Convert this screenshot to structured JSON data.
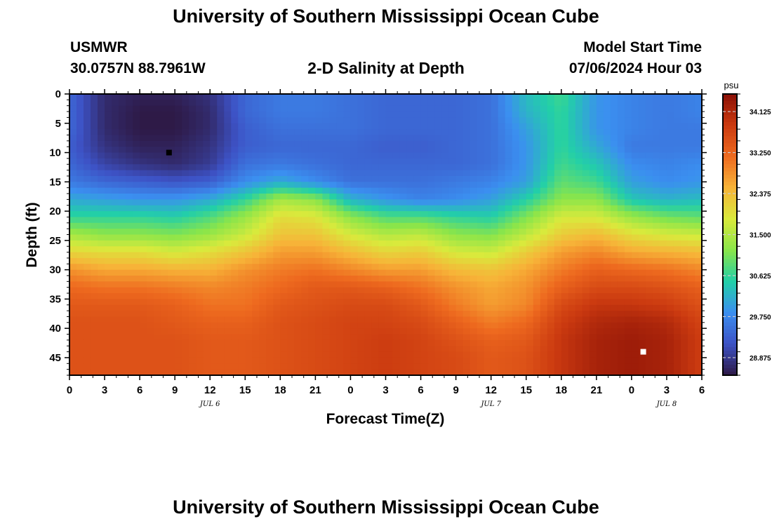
{
  "header": {
    "title": "University of Southern Mississippi Ocean Cube",
    "station": "USMWR",
    "coords": "30.0757N  88.7961W",
    "center_title": "2-D Salinity at Depth",
    "model_label": "Model Start Time",
    "model_value": "07/06/2024 Hour 03"
  },
  "footer": {
    "title": "University of Southern Mississippi Ocean Cube"
  },
  "chart_data": {
    "type": "heatmap",
    "title": "2-D Salinity at Depth",
    "xlabel": "Forecast Time(Z)",
    "ylabel": "Depth (ft)",
    "x_tick_labels": [
      "0",
      "3",
      "6",
      "9",
      "12",
      "15",
      "18",
      "21",
      "0",
      "3",
      "6",
      "9",
      "12",
      "15",
      "18",
      "21",
      "0",
      "3",
      "6"
    ],
    "x_date_labels": [
      {
        "label": "JUL 6",
        "hour": 12
      },
      {
        "label": "JUL 7",
        "hour": 36
      },
      {
        "label": "JUL 8",
        "hour": 51
      }
    ],
    "xlim_hours": [
      0,
      54
    ],
    "y_tick_labels": [
      "0",
      "5",
      "10",
      "15",
      "20",
      "25",
      "30",
      "35",
      "40",
      "45"
    ],
    "ylim": [
      0,
      48
    ],
    "y_inverted": true,
    "colorbar": {
      "unit": "psu",
      "min": 28.5,
      "max": 34.5,
      "ticks": [
        "34.125",
        "33.250",
        "32.375",
        "31.500",
        "30.625",
        "29.750",
        "28.875"
      ],
      "colors": [
        "#2e1a47",
        "#3d52c5",
        "#3b8ff0",
        "#22cfa8",
        "#8ae54a",
        "#d9ea3c",
        "#f7b338",
        "#ee6a1f",
        "#cb3a10",
        "#8a1006"
      ]
    },
    "columns_hours": [
      0,
      3,
      6,
      9,
      12,
      15,
      18,
      21,
      24,
      27,
      30,
      33,
      36,
      39,
      42,
      45,
      48,
      51,
      54
    ],
    "rows_depth_ft": [
      0,
      3,
      6,
      9,
      12,
      15,
      18,
      21,
      24,
      27,
      30,
      33,
      36,
      39,
      42,
      45,
      48
    ],
    "salinity_grid": [
      [
        29.4,
        28.7,
        28.6,
        28.6,
        28.8,
        29.4,
        29.6,
        29.6,
        29.5,
        29.4,
        29.4,
        29.4,
        29.5,
        30.3,
        30.7,
        29.9,
        29.7,
        29.6,
        29.7
      ],
      [
        29.4,
        28.7,
        28.5,
        28.5,
        28.7,
        29.4,
        29.6,
        29.6,
        29.5,
        29.4,
        29.4,
        29.4,
        29.5,
        30.2,
        30.6,
        29.9,
        29.7,
        29.6,
        29.7
      ],
      [
        29.4,
        28.7,
        28.5,
        28.5,
        28.7,
        29.3,
        29.5,
        29.5,
        29.5,
        29.4,
        29.4,
        29.4,
        29.5,
        30.0,
        30.6,
        29.9,
        29.7,
        29.6,
        29.6
      ],
      [
        29.3,
        28.8,
        28.6,
        28.6,
        28.8,
        29.3,
        29.4,
        29.4,
        29.4,
        29.3,
        29.3,
        29.4,
        29.5,
        29.9,
        30.6,
        30.1,
        29.6,
        29.6,
        29.6
      ],
      [
        29.4,
        29.0,
        28.8,
        28.7,
        28.9,
        29.5,
        29.6,
        29.5,
        29.4,
        29.4,
        29.4,
        29.4,
        29.5,
        29.9,
        30.7,
        30.4,
        29.8,
        29.7,
        29.8
      ],
      [
        29.6,
        29.4,
        29.3,
        29.2,
        29.3,
        29.8,
        30.1,
        29.8,
        29.5,
        29.5,
        29.5,
        29.6,
        29.7,
        30.0,
        30.9,
        30.7,
        30.0,
        29.8,
        29.9
      ],
      [
        30.1,
        30.0,
        29.9,
        29.9,
        30.1,
        30.6,
        31.4,
        31.2,
        30.2,
        29.9,
        29.7,
        29.8,
        30.0,
        30.5,
        31.2,
        31.2,
        30.4,
        30.2,
        30.3
      ],
      [
        30.6,
        30.6,
        30.6,
        30.5,
        30.8,
        31.3,
        32.0,
        31.9,
        31.2,
        30.8,
        30.8,
        30.6,
        30.5,
        31.1,
        31.8,
        31.8,
        31.3,
        31.0,
        30.9
      ],
      [
        31.4,
        31.2,
        31.2,
        31.1,
        31.3,
        31.7,
        32.3,
        32.3,
        31.8,
        31.5,
        31.6,
        31.2,
        31.1,
        31.6,
        32.2,
        32.4,
        32.0,
        31.8,
        31.7
      ],
      [
        32.1,
        32.0,
        32.0,
        31.8,
        32.0,
        32.3,
        32.7,
        32.7,
        32.4,
        32.1,
        32.2,
        31.8,
        31.7,
        32.2,
        32.7,
        32.9,
        32.6,
        32.5,
        32.4
      ],
      [
        32.8,
        32.6,
        32.6,
        32.5,
        32.5,
        32.8,
        33.0,
        33.1,
        32.9,
        32.7,
        32.7,
        32.4,
        32.3,
        32.6,
        33.0,
        33.3,
        33.2,
        33.1,
        32.9
      ],
      [
        33.2,
        33.1,
        33.1,
        33.0,
        32.9,
        33.0,
        33.2,
        33.4,
        33.4,
        33.3,
        33.1,
        32.8,
        32.6,
        32.8,
        33.3,
        33.6,
        33.6,
        33.5,
        33.3
      ],
      [
        33.4,
        33.4,
        33.4,
        33.3,
        33.1,
        33.1,
        33.4,
        33.5,
        33.6,
        33.6,
        33.4,
        33.0,
        32.7,
        32.9,
        33.6,
        33.9,
        33.9,
        33.8,
        33.5
      ],
      [
        33.5,
        33.5,
        33.5,
        33.4,
        33.3,
        33.3,
        33.5,
        33.6,
        33.7,
        33.7,
        33.6,
        33.3,
        33.0,
        33.2,
        33.8,
        34.1,
        34.2,
        34.1,
        33.7
      ],
      [
        33.5,
        33.5,
        33.5,
        33.5,
        33.4,
        33.4,
        33.5,
        33.6,
        33.7,
        33.8,
        33.7,
        33.5,
        33.3,
        33.4,
        33.9,
        34.2,
        34.3,
        34.2,
        33.8
      ],
      [
        33.5,
        33.5,
        33.5,
        33.5,
        33.4,
        33.4,
        33.5,
        33.6,
        33.7,
        33.8,
        33.7,
        33.6,
        33.4,
        33.5,
        33.9,
        34.2,
        34.3,
        34.2,
        33.8
      ],
      [
        33.5,
        33.5,
        33.5,
        33.5,
        33.4,
        33.4,
        33.5,
        33.6,
        33.7,
        33.8,
        33.7,
        33.6,
        33.4,
        33.5,
        33.9,
        34.2,
        34.3,
        34.2,
        33.8
      ]
    ],
    "markers": [
      {
        "type": "min",
        "hour": 8.5,
        "depth": 10,
        "color": "#000000"
      },
      {
        "type": "max",
        "hour": 49,
        "depth": 44,
        "color": "#ffffff"
      }
    ]
  }
}
